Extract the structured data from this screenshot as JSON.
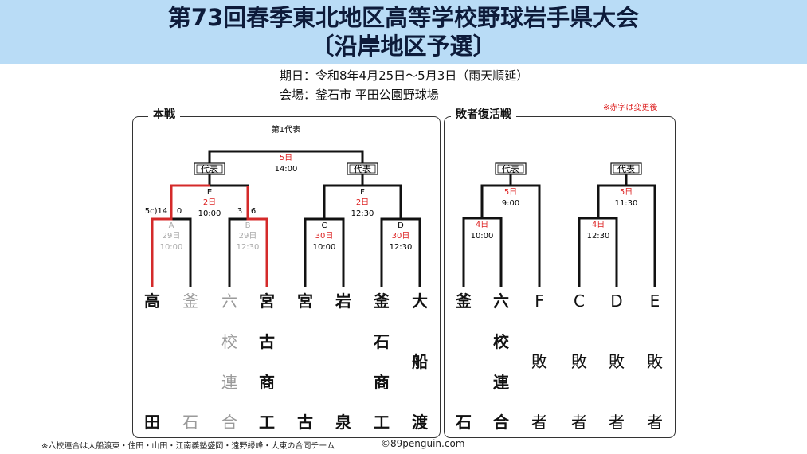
{
  "header": {
    "title_line1": "第73回春季東北地区高等学校野球岩手県大会",
    "title_line2": "〔沿岸地区予選〕"
  },
  "info": {
    "period": "期日：令和8年4月25日～5月3日（雨天順延）",
    "venue": "会場：釜石市 平田公園野球場"
  },
  "note_red": "※赤字は変更後",
  "main": {
    "label": "本戦",
    "top_label": "第1代表",
    "final": {
      "day": "5日",
      "time": "14:00"
    },
    "daihyo": "代表",
    "E": {
      "letter": "E",
      "day": "2日",
      "time": "10:00",
      "score_left_a": "5c)14",
      "score_left_b": "0",
      "score_right_a": "3",
      "score_right_b": "6"
    },
    "F": {
      "letter": "F",
      "day": "2日",
      "time": "12:30"
    },
    "A": {
      "letter": "A",
      "day": "29日",
      "time": "10:00"
    },
    "B": {
      "letter": "B",
      "day": "29日",
      "time": "12:30"
    },
    "C": {
      "letter": "C",
      "day": "30日",
      "time": "10:00"
    },
    "D": {
      "letter": "D",
      "day": "30日",
      "time": "12:30"
    },
    "teams": [
      [
        "高",
        "",
        "",
        "田"
      ],
      [
        "釜",
        "",
        "",
        "石"
      ],
      [
        "六",
        "校",
        "連",
        "合"
      ],
      [
        "宮",
        "古",
        "商",
        "工"
      ],
      [
        "宮",
        "",
        "",
        "古"
      ],
      [
        "岩",
        "",
        "",
        "泉"
      ],
      [
        "釜",
        "石",
        "商",
        "工"
      ],
      [
        "大",
        "",
        "船",
        "渡"
      ]
    ]
  },
  "repechage": {
    "label": "敗者復活戦",
    "daihyo": "代表",
    "left_final": {
      "day": "5日",
      "time": "9:00"
    },
    "left_semi": {
      "day": "4日",
      "time": "10:00"
    },
    "right_final": {
      "day": "5日",
      "time": "11:30"
    },
    "right_semi": {
      "day": "4日",
      "time": "12:30"
    },
    "teams": [
      [
        "釜",
        "",
        "",
        "石"
      ],
      [
        "六",
        "校",
        "連",
        "合"
      ],
      [
        "F",
        "",
        "敗",
        "者"
      ],
      [
        "C",
        "",
        "敗",
        "者"
      ],
      [
        "D",
        "",
        "敗",
        "者"
      ],
      [
        "E",
        "",
        "敗",
        "者"
      ]
    ]
  },
  "footnote": "※六校連合は大船渡東・住田・山田・江南義塾盛岡・遠野緑峰・大東の合同チーム",
  "copyright": "©89penguin.com",
  "colors": {
    "winner_line": "#d42a2a",
    "red_text": "#d22",
    "gray_text": "#9a9a9a",
    "banner": "#b9dcf6"
  }
}
